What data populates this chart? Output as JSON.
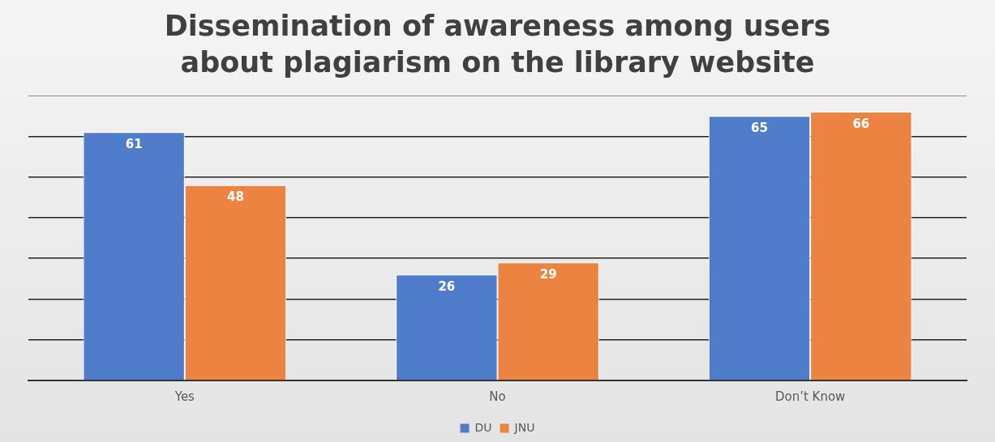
{
  "chart_data": {
    "type": "bar",
    "title": "Dissemination of awareness among users about plagiarism on the library website",
    "categories": [
      "Yes",
      "No",
      "Don’t Know"
    ],
    "series": [
      {
        "name": "DU",
        "color": "#4f7ccb",
        "values": [
          61,
          26,
          65
        ]
      },
      {
        "name": "JNU",
        "color": "#ed8340",
        "values": [
          48,
          29,
          66
        ]
      }
    ],
    "ylim": [
      0,
      70
    ],
    "yticks": [
      {
        "value": 0,
        "label": null
      },
      {
        "value": 10,
        "label": null
      },
      {
        "value": 20,
        "label": null
      },
      {
        "value": 30,
        "label": null
      },
      {
        "value": 40,
        "label": null
      },
      {
        "value": 50,
        "label": null
      },
      {
        "value": 60,
        "label": null
      },
      {
        "value": 70,
        "label": null
      }
    ],
    "grid": "y",
    "data_labels": true,
    "legend": "bottom"
  }
}
